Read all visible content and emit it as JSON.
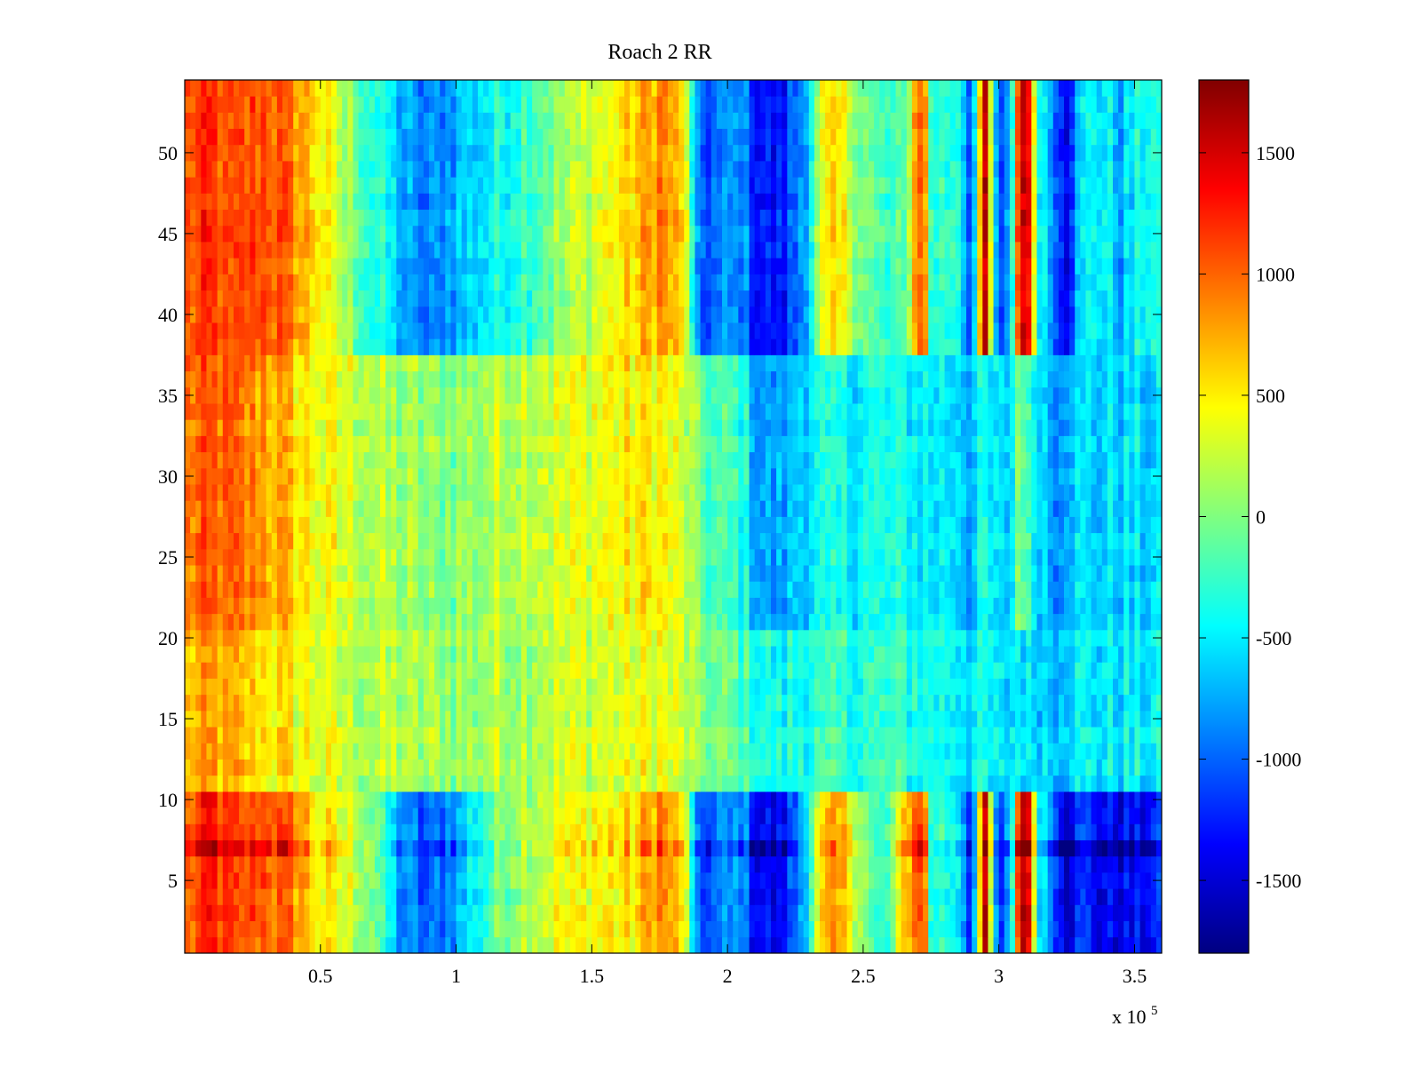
{
  "chart_data": {
    "type": "heatmap",
    "title": "Roach 2 RR",
    "xlabel": "",
    "ylabel": "",
    "x_multiplier_label": {
      "base": "x 10",
      "exponent": "5"
    },
    "xlim": [
      0,
      3.6
    ],
    "ylim": [
      0.5,
      54.5
    ],
    "x_ticks": [
      0.5,
      1,
      1.5,
      2,
      2.5,
      3,
      3.5
    ],
    "x_tick_labels": [
      "0.5",
      "1",
      "1.5",
      "2",
      "2.5",
      "3",
      "3.5"
    ],
    "y_ticks": [
      5,
      10,
      15,
      20,
      25,
      30,
      35,
      40,
      45,
      50
    ],
    "y_tick_labels": [
      "5",
      "10",
      "15",
      "20",
      "25",
      "30",
      "35",
      "40",
      "45",
      "50"
    ],
    "colorbar": {
      "colormap": "jet",
      "range": [
        -1800,
        1800
      ],
      "ticks": [
        1500,
        1000,
        500,
        0,
        -500,
        -1000,
        -1500
      ],
      "tick_labels": [
        "1500",
        "1000",
        "500",
        "0",
        "-500",
        "-1000",
        "-1500"
      ]
    },
    "rows": 54,
    "column_profile": {
      "x_units_1e5": [
        0.0,
        0.05,
        0.1,
        0.15,
        0.2,
        0.25,
        0.3,
        0.35,
        0.4,
        0.45,
        0.5,
        0.55,
        0.6,
        0.65,
        0.7,
        0.75,
        0.8,
        0.85,
        0.9,
        0.95,
        1.0,
        1.05,
        1.1,
        1.15,
        1.2,
        1.25,
        1.3,
        1.35,
        1.4,
        1.45,
        1.5,
        1.55,
        1.6,
        1.65,
        1.7,
        1.75,
        1.8,
        1.85,
        1.88,
        1.9,
        1.95,
        2.0,
        2.05,
        2.1,
        2.15,
        2.2,
        2.25,
        2.3,
        2.35,
        2.4,
        2.45,
        2.5,
        2.55,
        2.6,
        2.65,
        2.7,
        2.72,
        2.75,
        2.8,
        2.85,
        2.9,
        2.95,
        3.0,
        3.05,
        3.08,
        3.1,
        3.15,
        3.2,
        3.25,
        3.3,
        3.35,
        3.4,
        3.45,
        3.5,
        3.55,
        3.6
      ],
      "top_values": [
        1000,
        1100,
        1200,
        1000,
        1050,
        1100,
        1150,
        1000,
        900,
        700,
        500,
        300,
        100,
        -100,
        -300,
        -500,
        -700,
        -900,
        -950,
        -800,
        -700,
        -600,
        -500,
        -400,
        -300,
        -200,
        -100,
        0,
        100,
        200,
        300,
        400,
        500,
        600,
        700,
        900,
        700,
        400,
        -900,
        -1000,
        -1000,
        -900,
        -800,
        -1200,
        -1300,
        -1300,
        -1000,
        -500,
        300,
        500,
        300,
        0,
        -200,
        -300,
        -200,
        1000,
        1200,
        -200,
        -300,
        -200,
        -1100,
        1500,
        -1400,
        -300,
        1700,
        1600,
        -300,
        -800,
        -1300,
        -600,
        -400,
        -500,
        -700,
        -500,
        -300,
        -500
      ],
      "middle_values": [
        900,
        950,
        1000,
        950,
        900,
        850,
        800,
        700,
        600,
        500,
        400,
        350,
        300,
        250,
        200,
        150,
        100,
        50,
        0,
        0,
        50,
        100,
        150,
        200,
        250,
        300,
        300,
        300,
        300,
        350,
        400,
        400,
        450,
        450,
        500,
        500,
        350,
        200,
        0,
        -100,
        -200,
        -250,
        -300,
        -700,
        -800,
        -800,
        -600,
        -500,
        -450,
        -450,
        -450,
        -400,
        -400,
        -400,
        -400,
        -450,
        -450,
        -500,
        -500,
        -500,
        -700,
        -400,
        -700,
        -500,
        300,
        -300,
        -500,
        -800,
        -600,
        -600,
        -600,
        -600,
        -600,
        -600,
        -600,
        -600
      ],
      "low_values": [
        600,
        700,
        750,
        700,
        650,
        600,
        550,
        500,
        450,
        400,
        350,
        300,
        250,
        200,
        200,
        150,
        150,
        100,
        100,
        100,
        100,
        100,
        150,
        150,
        200,
        200,
        250,
        250,
        250,
        300,
        300,
        300,
        350,
        350,
        350,
        400,
        300,
        200,
        50,
        0,
        -50,
        -100,
        -150,
        -300,
        -400,
        -400,
        -350,
        -300,
        -300,
        -300,
        -300,
        -300,
        -300,
        -300,
        -300,
        -300,
        -350,
        -350,
        -400,
        -400,
        -500,
        -400,
        -600,
        -500,
        -400,
        -600,
        -500,
        -600,
        -500,
        -500,
        -500,
        -500,
        -500,
        -500,
        -500,
        -500
      ],
      "bottom_values": [
        900,
        1100,
        1300,
        1100,
        1000,
        1050,
        1100,
        1000,
        900,
        700,
        500,
        400,
        300,
        200,
        0,
        -500,
        -800,
        -1000,
        -1100,
        -900,
        -800,
        -500,
        -300,
        -100,
        100,
        200,
        300,
        350,
        400,
        400,
        450,
        450,
        500,
        500,
        700,
        900,
        700,
        400,
        -1000,
        -1100,
        -1000,
        -900,
        -800,
        -1300,
        -1400,
        -1400,
        -1000,
        -300,
        500,
        700,
        500,
        100,
        -300,
        -200,
        600,
        1100,
        1300,
        -300,
        -300,
        -400,
        -1300,
        1500,
        -1500,
        -300,
        1800,
        1700,
        -400,
        -900,
        -1400,
        -1200,
        -1300,
        -1400,
        -1400,
        -1400,
        -1300,
        -1300
      ]
    },
    "row_bands": {
      "bottom_rows": [
        1,
        10
      ],
      "low_rows": [
        11,
        20
      ],
      "middle_rows": [
        21,
        37
      ],
      "top_rows": [
        38,
        54
      ],
      "hot_row": 7
    }
  }
}
